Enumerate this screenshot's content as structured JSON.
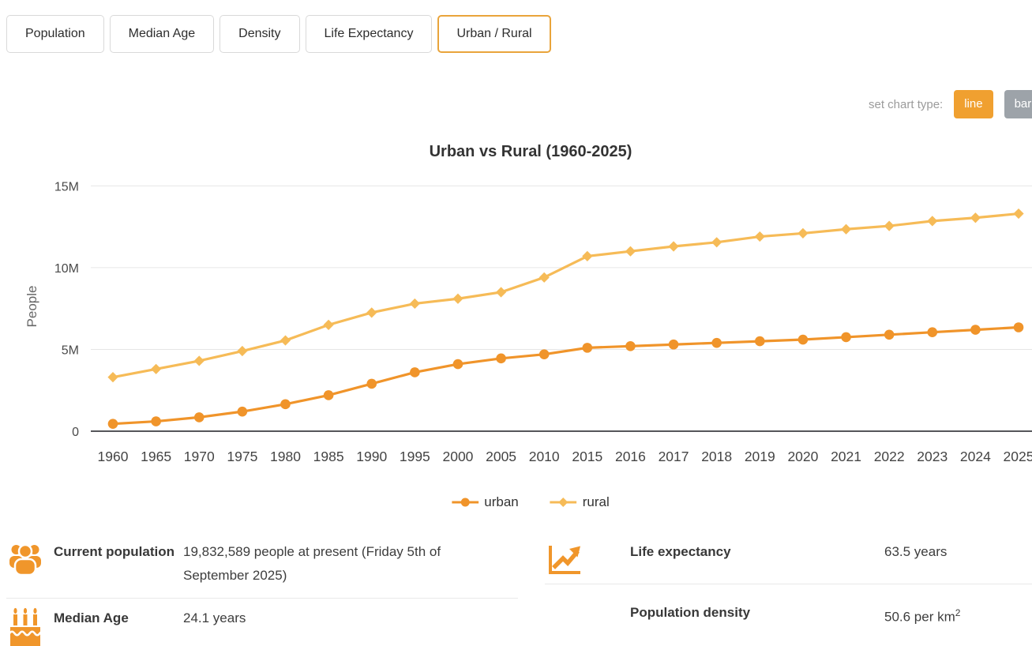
{
  "tabs": [
    {
      "label": "Population",
      "active": false
    },
    {
      "label": "Median Age",
      "active": false
    },
    {
      "label": "Density",
      "active": false
    },
    {
      "label": "Life Expectancy",
      "active": false
    },
    {
      "label": "Urban / Rural",
      "active": true
    }
  ],
  "chart_type": {
    "label": "set chart type:",
    "options": [
      "line",
      "bar"
    ],
    "selected": "line"
  },
  "chart_data": {
    "type": "line",
    "title": "Urban vs Rural (1960-2025)",
    "ylabel": "People",
    "xlabel": "",
    "unit": "millions of people",
    "ylim": [
      0,
      15
    ],
    "grid": true,
    "legend_position": "bottom",
    "y_ticks": [
      {
        "value": 0,
        "label": "0"
      },
      {
        "value": 5,
        "label": "5M"
      },
      {
        "value": 10,
        "label": "10M"
      },
      {
        "value": 15,
        "label": "15M"
      }
    ],
    "categories": [
      "1960",
      "1965",
      "1970",
      "1975",
      "1980",
      "1985",
      "1990",
      "1995",
      "2000",
      "2005",
      "2010",
      "2015",
      "2016",
      "2017",
      "2018",
      "2019",
      "2020",
      "2021",
      "2022",
      "2023",
      "2024",
      "2025"
    ],
    "series": [
      {
        "name": "urban",
        "color": "#F0942A",
        "marker": "circle",
        "values": [
          0.45,
          0.6,
          0.85,
          1.2,
          1.65,
          2.2,
          2.9,
          3.6,
          4.1,
          4.45,
          4.7,
          5.1,
          5.2,
          5.3,
          5.4,
          5.5,
          5.6,
          5.75,
          5.9,
          6.05,
          6.2,
          6.35
        ]
      },
      {
        "name": "rural",
        "color": "#F6BB57",
        "marker": "diamond",
        "values": [
          3.3,
          3.8,
          4.3,
          4.9,
          5.55,
          6.5,
          7.25,
          7.8,
          8.1,
          8.5,
          9.4,
          10.7,
          11.0,
          11.3,
          11.55,
          11.9,
          12.1,
          12.35,
          12.55,
          12.85,
          13.05,
          13.3
        ]
      }
    ]
  },
  "info": {
    "current_population": {
      "label": "Current population",
      "value": "19,832,589 people at present (Friday 5th of September 2025)",
      "icon": "people-icon"
    },
    "median_age": {
      "label": "Median Age",
      "value": "24.1 years",
      "icon": "birthday-cake-icon"
    },
    "life_expectancy": {
      "label": "Life expectancy",
      "value": "63.5 years",
      "icon": "trend-chart-icon"
    },
    "population_density": {
      "label": "Population density",
      "value": "50.6 per km",
      "value_sup": "2"
    }
  },
  "colors": {
    "accent_orange": "#F0962B",
    "urban_series": "#F0942A",
    "rural_series": "#F6BB57",
    "active_tab_border": "#E9A43B",
    "line_button_bg": "#F0A030",
    "bar_button_bg": "#9DA3A9",
    "gridline": "#E6E6E6",
    "axis_line": "#55565A"
  }
}
